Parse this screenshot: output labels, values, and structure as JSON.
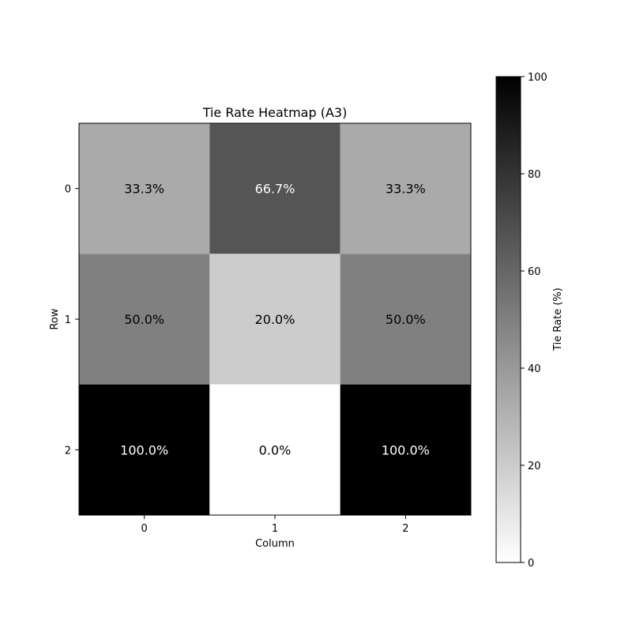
{
  "chart_data": {
    "type": "heatmap",
    "title": "Tie Rate Heatmap (A3)",
    "xlabel": "Column",
    "ylabel": "Row",
    "x_categories": [
      "0",
      "1",
      "2"
    ],
    "y_categories": [
      "0",
      "1",
      "2"
    ],
    "values": [
      [
        33.3,
        66.7,
        33.3
      ],
      [
        50.0,
        20.0,
        50.0
      ],
      [
        100.0,
        0.0,
        100.0
      ]
    ],
    "cell_labels": [
      [
        "33.3%",
        "66.7%",
        "33.3%"
      ],
      [
        "50.0%",
        "20.0%",
        "50.0%"
      ],
      [
        "100.0%",
        "0.0%",
        "100.0%"
      ]
    ],
    "colormap": "Greys",
    "vmin": 0,
    "vmax": 100,
    "colorbar": {
      "label": "Tie Rate (%)",
      "ticks": [
        0,
        20,
        40,
        60,
        80,
        100
      ],
      "tick_labels": [
        "0",
        "20",
        "40",
        "60",
        "80",
        "100"
      ]
    },
    "colors": {
      "low": "#ffffff",
      "high": "#000000",
      "text_dark": "#000000",
      "text_light": "#ffffff"
    }
  }
}
